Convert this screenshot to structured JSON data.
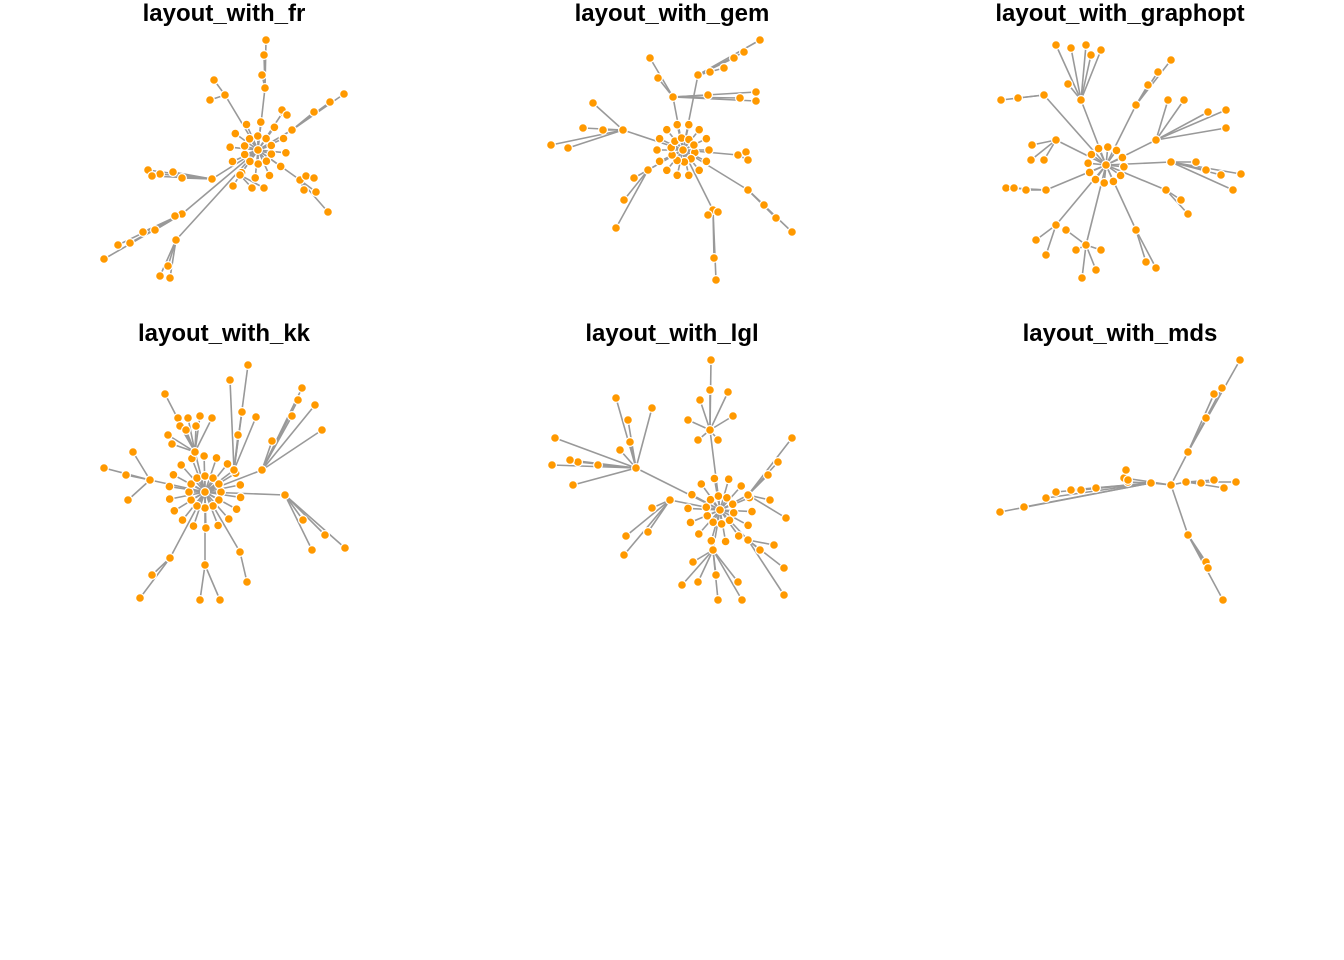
{
  "colors": {
    "node_fill": "#FF9900",
    "node_stroke": "#FFFFFF",
    "edge": "#999999",
    "background": "#FFFFFF"
  },
  "panels": [
    {
      "title": "layout_with_fr"
    },
    {
      "title": "layout_with_gem"
    },
    {
      "title": "layout_with_graphopt"
    },
    {
      "title": "layout_with_kk"
    },
    {
      "title": "layout_with_lgl"
    },
    {
      "title": "layout_with_mds"
    }
  ]
}
